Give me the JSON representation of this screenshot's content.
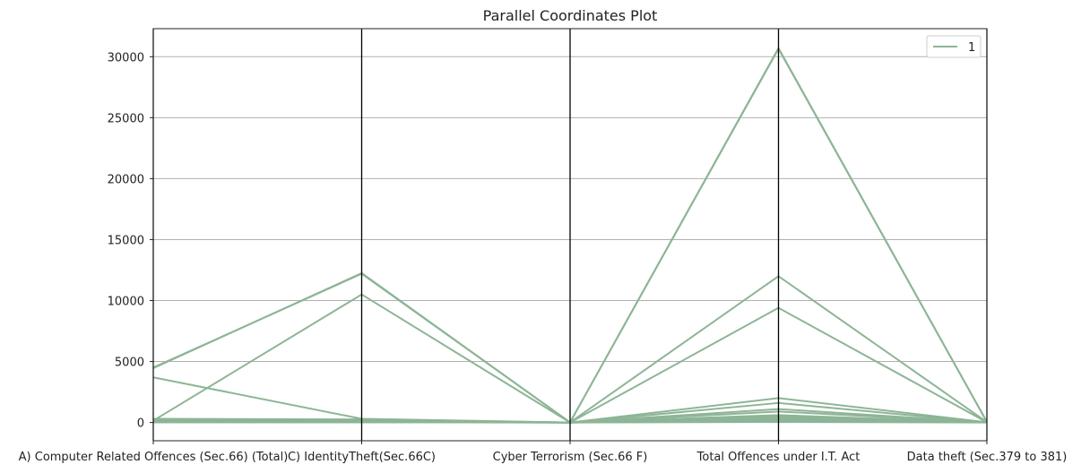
{
  "chart_data": {
    "type": "parallel-coordinates",
    "title": "Parallel Coordinates Plot",
    "axes": [
      "A) Computer Related Offences (Sec.66) (Total)",
      "C) IdentityTheft(Sec.66C)",
      "Cyber Terrorism (Sec.66 F)",
      "Total Offences under I.T. Act",
      "Data theft (Sec.379 to 381)"
    ],
    "ylim": [
      -1500,
      32300
    ],
    "yticks": [
      "0",
      "5000",
      "10000",
      "15000",
      "20000",
      "25000",
      "30000"
    ],
    "ytick_values": [
      0,
      5000,
      10000,
      15000,
      20000,
      25000,
      30000
    ],
    "grid": true,
    "legend": {
      "placement": "top-right",
      "entries": [
        "1"
      ]
    },
    "line_color": "#8db596",
    "lines": [
      [
        4500,
        12200,
        10,
        30700,
        50
      ],
      [
        4450,
        12250,
        5,
        30650,
        40
      ],
      [
        150,
        10500,
        0,
        12000,
        30
      ],
      [
        100,
        200,
        0,
        9400,
        20
      ],
      [
        3700,
        300,
        0,
        2000,
        15
      ],
      [
        300,
        250,
        0,
        1600,
        10
      ],
      [
        250,
        150,
        0,
        1100,
        10
      ],
      [
        200,
        100,
        0,
        900,
        5
      ],
      [
        150,
        120,
        0,
        600,
        5
      ],
      [
        100,
        80,
        0,
        500,
        5
      ],
      [
        80,
        60,
        0,
        400,
        5
      ],
      [
        60,
        40,
        0,
        300,
        3
      ],
      [
        50,
        30,
        0,
        200,
        3
      ],
      [
        30,
        20,
        0,
        150,
        2
      ],
      [
        20,
        10,
        0,
        100,
        2
      ],
      [
        10,
        5,
        0,
        50,
        1
      ]
    ]
  }
}
